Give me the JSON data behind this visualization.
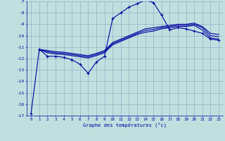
{
  "xlabel": "Graphe des températures (°c)",
  "xlim": [
    -0.5,
    23.5
  ],
  "ylim": [
    -17,
    -7
  ],
  "yticks": [
    -17,
    -16,
    -15,
    -14,
    -13,
    -12,
    -11,
    -10,
    -9,
    -8,
    -7
  ],
  "xticks": [
    0,
    1,
    2,
    3,
    4,
    5,
    6,
    7,
    8,
    9,
    10,
    11,
    12,
    13,
    14,
    15,
    16,
    17,
    18,
    19,
    20,
    21,
    22,
    23
  ],
  "background_color": "#c0e0e0",
  "grid_color": "#80a8c0",
  "line_color": "#0000a0",
  "line_width": 0.8,
  "marker": "+",
  "marker_size": 3,
  "lines": [
    {
      "x": [
        0,
        1,
        2,
        3,
        4,
        5,
        6,
        7,
        8,
        9,
        10,
        11,
        12,
        13,
        14,
        15,
        16,
        17,
        18,
        19,
        20,
        21,
        22,
        23
      ],
      "y": [
        -16.8,
        -11.2,
        -11.8,
        -11.8,
        -11.9,
        -12.1,
        -12.5,
        -13.3,
        -12.3,
        -11.8,
        -8.5,
        -8.0,
        -7.5,
        -7.2,
        -6.9,
        -7.1,
        -8.2,
        -9.5,
        -9.3,
        -9.4,
        -9.6,
        -9.8,
        -10.3,
        -10.4
      ],
      "has_markers": true
    },
    {
      "x": [
        1,
        2,
        3,
        4,
        5,
        6,
        7,
        8,
        9,
        10,
        11,
        12,
        13,
        14,
        15,
        16,
        17,
        18,
        19,
        20,
        21,
        22,
        23
      ],
      "y": [
        -11.2,
        -11.5,
        -11.6,
        -11.65,
        -11.75,
        -11.85,
        -11.95,
        -11.75,
        -11.5,
        -10.8,
        -10.5,
        -10.2,
        -9.9,
        -9.7,
        -9.6,
        -9.4,
        -9.3,
        -9.2,
        -9.2,
        -9.1,
        -9.5,
        -10.2,
        -10.3
      ],
      "has_markers": false
    },
    {
      "x": [
        1,
        2,
        3,
        4,
        5,
        6,
        7,
        8,
        9,
        10,
        11,
        12,
        13,
        14,
        15,
        16,
        17,
        18,
        19,
        20,
        21,
        22,
        23
      ],
      "y": [
        -11.2,
        -11.4,
        -11.5,
        -11.55,
        -11.65,
        -11.75,
        -11.85,
        -11.65,
        -11.4,
        -10.7,
        -10.4,
        -10.1,
        -9.8,
        -9.55,
        -9.45,
        -9.3,
        -9.2,
        -9.1,
        -9.1,
        -9.0,
        -9.3,
        -10.0,
        -10.1
      ],
      "has_markers": false
    },
    {
      "x": [
        1,
        2,
        3,
        4,
        5,
        6,
        7,
        8,
        9,
        10,
        11,
        12,
        13,
        14,
        15,
        16,
        17,
        18,
        19,
        20,
        21,
        22,
        23
      ],
      "y": [
        -11.2,
        -11.3,
        -11.4,
        -11.45,
        -11.55,
        -11.65,
        -11.75,
        -11.55,
        -11.3,
        -10.6,
        -10.3,
        -10.0,
        -9.7,
        -9.4,
        -9.3,
        -9.2,
        -9.1,
        -9.0,
        -9.0,
        -8.9,
        -9.2,
        -9.8,
        -9.9
      ],
      "has_markers": false
    }
  ]
}
